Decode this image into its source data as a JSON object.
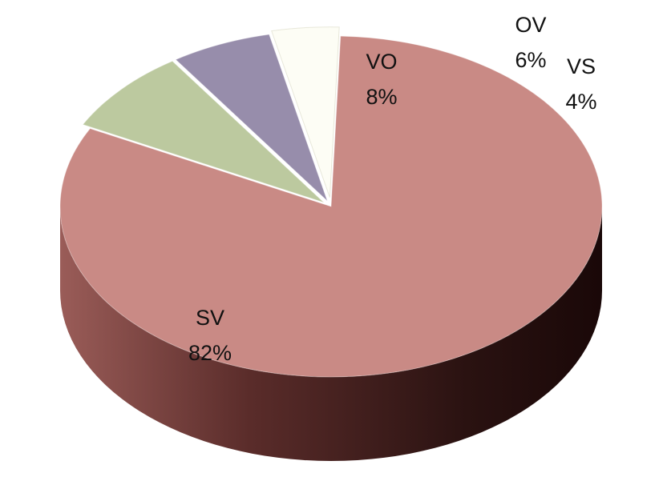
{
  "chart_data": {
    "type": "pie",
    "style": "3d-exploded",
    "slices": [
      {
        "name": "SV",
        "value": 82,
        "label": "SV",
        "percent_label": "82%",
        "color": "#C98A85",
        "side_color": "#6E3F3C"
      },
      {
        "name": "VO",
        "value": 8,
        "label": "VO",
        "percent_label": "8%",
        "color": "#BCC99F",
        "side_color": "#6E7A55"
      },
      {
        "name": "OV",
        "value": 6,
        "label": "OV",
        "percent_label": "6%",
        "color": "#978DAB",
        "side_color": "#544C66"
      },
      {
        "name": "VS",
        "value": 4,
        "label": "VS",
        "percent_label": "4%",
        "color": "#FDFDF5",
        "side_color": "#C9C9BD"
      }
    ],
    "start_angle_deg": 272,
    "direction": "clockwise",
    "background": "#FFFFFF"
  }
}
